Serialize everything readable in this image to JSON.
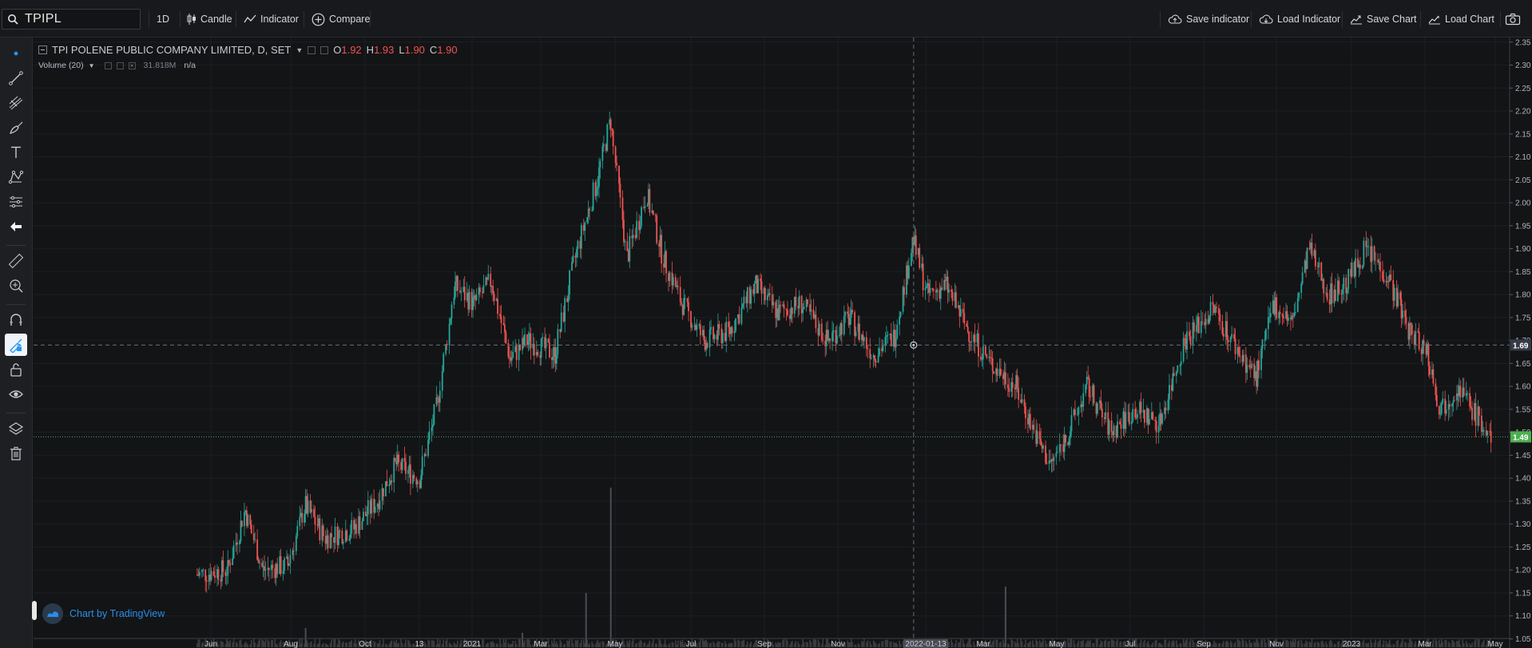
{
  "toolbar": {
    "symbol": "TPIPL",
    "interval": "1D",
    "candle_label": "Candle",
    "indicator_label": "Indicator",
    "compare_label": "Compare",
    "save_indicator_label": "Save indicator",
    "load_indicator_label": "Load Indicator",
    "save_chart_label": "Save Chart",
    "load_chart_label": "Load Chart"
  },
  "left_tools": [
    "cursor-dot-icon",
    "trend-line-icon",
    "pitchfork-icon",
    "brush-icon",
    "text-icon",
    "pattern-icon",
    "projection-icon",
    "back-arrow-icon",
    "ruler-icon",
    "zoom-in-icon",
    "magnet-icon",
    "lock-drawing-icon",
    "unlock-icon",
    "eye-icon",
    "layers-icon",
    "trash-icon"
  ],
  "legend": {
    "title": "TPI POLENE PUBLIC COMPANY LIMITED, D, SET",
    "o_label": "O",
    "o": "1.92",
    "h_label": "H",
    "h": "1.93",
    "l_label": "L",
    "l": "1.90",
    "c_label": "C",
    "c": "1.90",
    "volume_label": "Volume (20)",
    "volume_value": "31.818M",
    "volume_ma": "n/a"
  },
  "watermark": "Chart by TradingView",
  "colors": {
    "up": "#26a69a",
    "down": "#ef5350",
    "background": "#131416",
    "last_price": "#4caf50",
    "crosshair_label": "#363a45"
  },
  "chart_data": {
    "type": "candlestick",
    "ylim": [
      1.03,
      2.36
    ],
    "y_ticks": [
      "2.35",
      "2.30",
      "2.25",
      "2.20",
      "2.15",
      "2.10",
      "2.05",
      "2.00",
      "1.95",
      "1.90",
      "1.85",
      "1.80",
      "1.75",
      "1.70",
      "1.65",
      "1.60",
      "1.55",
      "1.50",
      "1.45",
      "1.40",
      "1.35",
      "1.30",
      "1.25",
      "1.20",
      "1.15",
      "1.10",
      "1.05"
    ],
    "x_ticks": [
      "Jun",
      "Aug",
      "Oct",
      "13",
      "2021",
      "Mar",
      "May",
      "Jul",
      "Sep",
      "Nov",
      "2022-01-13",
      "Mar",
      "May",
      "Jul",
      "Sep",
      "Nov",
      "2023",
      "Mar",
      "May"
    ],
    "crosshair": {
      "date": "2022-01-13",
      "price": "1.69"
    },
    "last_price": "1.49",
    "close_path": [
      {
        "date": "2020-05-15",
        "close": 1.19
      },
      {
        "date": "2020-06-10",
        "close": 1.2
      },
      {
        "date": "2020-06-25",
        "close": 1.33
      },
      {
        "date": "2020-07-10",
        "close": 1.2
      },
      {
        "date": "2020-07-31",
        "close": 1.21
      },
      {
        "date": "2020-08-15",
        "close": 1.34
      },
      {
        "date": "2020-09-01",
        "close": 1.27
      },
      {
        "date": "2020-09-25",
        "close": 1.29
      },
      {
        "date": "2020-10-15",
        "close": 1.35
      },
      {
        "date": "2020-10-31",
        "close": 1.43
      },
      {
        "date": "2020-11-20",
        "close": 1.4
      },
      {
        "date": "2020-12-05",
        "close": 1.56
      },
      {
        "date": "2020-12-20",
        "close": 1.82
      },
      {
        "date": "2021-01-05",
        "close": 1.78
      },
      {
        "date": "2021-01-20",
        "close": 1.83
      },
      {
        "date": "2021-02-05",
        "close": 1.66
      },
      {
        "date": "2021-02-20",
        "close": 1.7
      },
      {
        "date": "2021-03-15",
        "close": 1.67
      },
      {
        "date": "2021-04-01",
        "close": 1.88
      },
      {
        "date": "2021-04-20",
        "close": 2.05
      },
      {
        "date": "2021-05-01",
        "close": 2.18
      },
      {
        "date": "2021-05-15",
        "close": 1.88
      },
      {
        "date": "2021-06-01",
        "close": 2.02
      },
      {
        "date": "2021-06-15",
        "close": 1.88
      },
      {
        "date": "2021-07-01",
        "close": 1.78
      },
      {
        "date": "2021-07-20",
        "close": 1.7
      },
      {
        "date": "2021-08-10",
        "close": 1.72
      },
      {
        "date": "2021-09-01",
        "close": 1.82
      },
      {
        "date": "2021-09-20",
        "close": 1.76
      },
      {
        "date": "2021-10-10",
        "close": 1.78
      },
      {
        "date": "2021-11-01",
        "close": 1.7
      },
      {
        "date": "2021-11-20",
        "close": 1.75
      },
      {
        "date": "2021-12-10",
        "close": 1.67
      },
      {
        "date": "2021-12-28",
        "close": 1.71
      },
      {
        "date": "2022-01-13",
        "close": 1.92
      },
      {
        "date": "2022-01-25",
        "close": 1.8
      },
      {
        "date": "2022-02-10",
        "close": 1.82
      },
      {
        "date": "2022-03-01",
        "close": 1.72
      },
      {
        "date": "2022-03-20",
        "close": 1.65
      },
      {
        "date": "2022-04-10",
        "close": 1.6
      },
      {
        "date": "2022-05-01",
        "close": 1.47
      },
      {
        "date": "2022-05-10",
        "close": 1.43
      },
      {
        "date": "2022-05-25",
        "close": 1.5
      },
      {
        "date": "2022-06-10",
        "close": 1.6
      },
      {
        "date": "2022-06-30",
        "close": 1.5
      },
      {
        "date": "2022-07-20",
        "close": 1.55
      },
      {
        "date": "2022-08-10",
        "close": 1.52
      },
      {
        "date": "2022-08-31",
        "close": 1.7
      },
      {
        "date": "2022-09-25",
        "close": 1.77
      },
      {
        "date": "2022-10-15",
        "close": 1.68
      },
      {
        "date": "2022-10-31",
        "close": 1.62
      },
      {
        "date": "2022-11-15",
        "close": 1.78
      },
      {
        "date": "2022-12-01",
        "close": 1.74
      },
      {
        "date": "2022-12-15",
        "close": 1.9
      },
      {
        "date": "2023-01-01",
        "close": 1.8
      },
      {
        "date": "2023-01-15",
        "close": 1.82
      },
      {
        "date": "2023-02-01",
        "close": 1.9
      },
      {
        "date": "2023-02-20",
        "close": 1.84
      },
      {
        "date": "2023-03-10",
        "close": 1.72
      },
      {
        "date": "2023-03-25",
        "close": 1.68
      },
      {
        "date": "2023-04-05",
        "close": 1.55
      },
      {
        "date": "2023-04-20",
        "close": 1.6
      },
      {
        "date": "2023-05-10",
        "close": 1.52
      },
      {
        "date": "2023-05-20",
        "close": 1.47
      }
    ],
    "volume_spikes": [
      {
        "date": "2021-04-10",
        "relative": 0.34
      },
      {
        "date": "2021-05-01",
        "relative": 1.0
      },
      {
        "date": "2022-04-01",
        "relative": 0.38
      },
      {
        "date": "2020-08-15",
        "relative": 0.12
      },
      {
        "date": "2021-02-15",
        "relative": 0.09
      }
    ]
  }
}
